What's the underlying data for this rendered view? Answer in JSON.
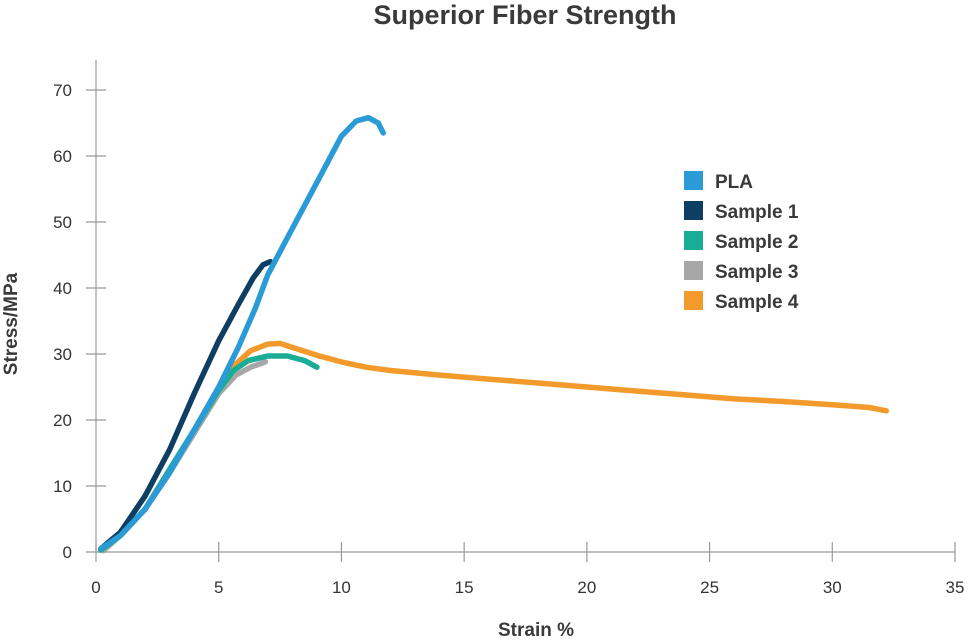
{
  "chart_data": {
    "type": "line",
    "title": "Superior Fiber Strength",
    "xlabel": "Strain %",
    "ylabel": "Stress/MPa",
    "xlim": [
      0,
      35
    ],
    "ylim": [
      0,
      70
    ],
    "xticks": [
      0,
      5,
      10,
      15,
      20,
      25,
      30,
      35
    ],
    "yticks": [
      0,
      10,
      20,
      30,
      40,
      50,
      60,
      70
    ],
    "grid": false,
    "legend_position": "right",
    "series": [
      {
        "name": "PLA",
        "color": "#2b9bd8",
        "points": [
          [
            0.2,
            0.5
          ],
          [
            1.0,
            2.5
          ],
          [
            2.0,
            6.5
          ],
          [
            3.0,
            12.0
          ],
          [
            4.0,
            18.5
          ],
          [
            5.0,
            25.0
          ],
          [
            5.8,
            31.0
          ],
          [
            6.5,
            37.0
          ],
          [
            7.0,
            42.0
          ],
          [
            8.0,
            49.0
          ],
          [
            9.0,
            56.0
          ],
          [
            10.0,
            63.0
          ],
          [
            10.6,
            65.3
          ],
          [
            11.1,
            65.8
          ],
          [
            11.5,
            65.0
          ],
          [
            11.7,
            63.5
          ]
        ]
      },
      {
        "name": "Sample 1",
        "color": "#0e3f63",
        "points": [
          [
            0.2,
            0.5
          ],
          [
            1.0,
            3.0
          ],
          [
            2.0,
            8.5
          ],
          [
            3.0,
            15.5
          ],
          [
            4.0,
            24.0
          ],
          [
            5.0,
            32.0
          ],
          [
            5.8,
            37.5
          ],
          [
            6.4,
            41.5
          ],
          [
            6.8,
            43.5
          ],
          [
            7.1,
            44.0
          ]
        ]
      },
      {
        "name": "Sample 2",
        "color": "#19ad96",
        "points": [
          [
            0.2,
            0.3
          ],
          [
            1.0,
            2.5
          ],
          [
            2.0,
            6.5
          ],
          [
            3.0,
            12.5
          ],
          [
            4.0,
            18.5
          ],
          [
            5.0,
            24.5
          ],
          [
            5.6,
            27.5
          ],
          [
            6.2,
            29.0
          ],
          [
            7.0,
            29.7
          ],
          [
            7.8,
            29.7
          ],
          [
            8.5,
            29.0
          ],
          [
            9.0,
            28.0
          ]
        ]
      },
      {
        "name": "Sample 3",
        "color": "#a7a7a7",
        "points": [
          [
            0.3,
            0.2
          ],
          [
            1.0,
            2.5
          ],
          [
            2.0,
            6.5
          ],
          [
            3.0,
            12.0
          ],
          [
            4.0,
            18.0
          ],
          [
            5.0,
            24.0
          ],
          [
            5.7,
            26.8
          ],
          [
            6.3,
            28.0
          ],
          [
            6.9,
            28.8
          ]
        ]
      },
      {
        "name": "Sample 4",
        "color": "#f29a2b",
        "points": [
          [
            0.2,
            0.3
          ],
          [
            1.0,
            2.5
          ],
          [
            2.0,
            6.5
          ],
          [
            3.0,
            12.0
          ],
          [
            4.0,
            18.5
          ],
          [
            5.0,
            24.5
          ],
          [
            5.7,
            28.5
          ],
          [
            6.3,
            30.5
          ],
          [
            7.0,
            31.5
          ],
          [
            7.5,
            31.6
          ],
          [
            8.0,
            31.0
          ],
          [
            9.0,
            29.8
          ],
          [
            10.0,
            28.8
          ],
          [
            11.0,
            28.0
          ],
          [
            12.0,
            27.5
          ],
          [
            14.0,
            26.8
          ],
          [
            16.0,
            26.2
          ],
          [
            18.0,
            25.6
          ],
          [
            20.0,
            25.0
          ],
          [
            22.0,
            24.4
          ],
          [
            24.0,
            23.8
          ],
          [
            26.0,
            23.2
          ],
          [
            28.0,
            22.8
          ],
          [
            30.0,
            22.3
          ],
          [
            31.5,
            21.9
          ],
          [
            32.2,
            21.4
          ]
        ]
      }
    ]
  }
}
